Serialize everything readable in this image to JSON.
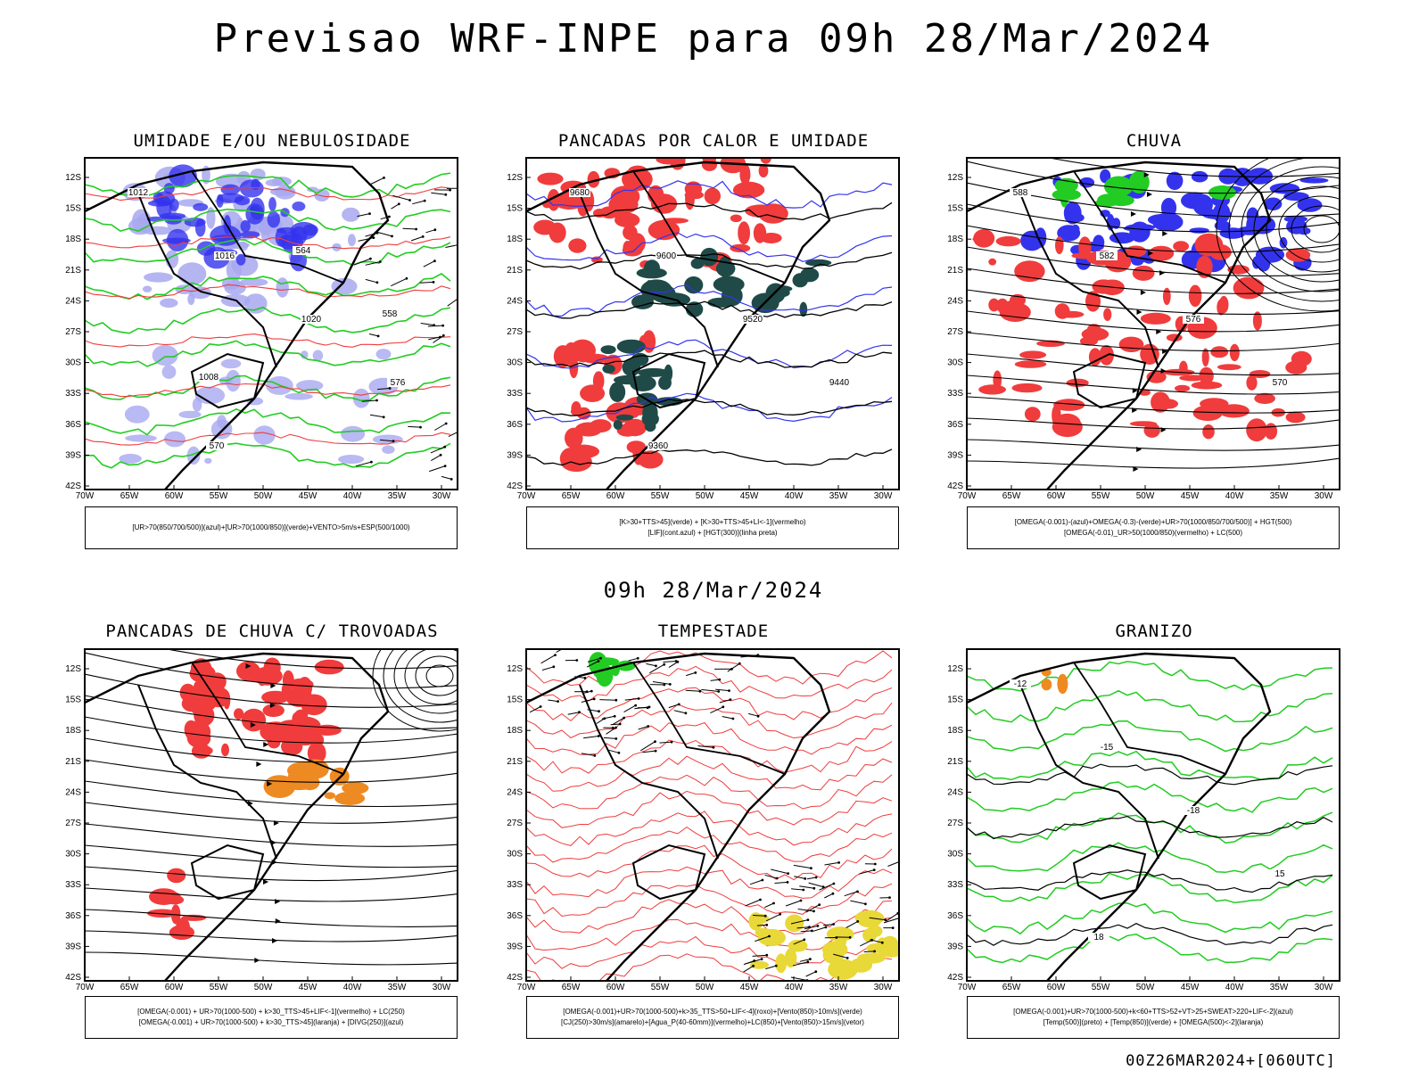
{
  "header": {
    "title": "Previsao WRF-INPE  para 09h 28/Mar/2024"
  },
  "mid_title": "09h 28/Mar/2024",
  "footer": "00Z26MAR2024+[060UTC]",
  "colors": {
    "red": "#f03c3c",
    "green": "#22cc22",
    "blue": "#3333ee",
    "lightblue": "#a8a8f0",
    "darkteal": "#1f4a48",
    "orange": "#ee8a22",
    "yellow": "#e8d838",
    "black": "#000000"
  },
  "chart_data": [
    {
      "type": "heatmap",
      "title": "UMIDADE E/OU NEBULOSIDADE",
      "legend": [
        "[UR>70(850/700/500)](azul)+[UR>70(1000/850)](verde)+VENTO>5m/s+ESP(500/1000)"
      ],
      "contour_labels": [
        "1012",
        "1016",
        "1020",
        "576",
        "570",
        "564",
        "558",
        "1008"
      ],
      "x": [
        "70W",
        "65W",
        "60W",
        "55W",
        "50W",
        "45W",
        "40W",
        "35W",
        "30W"
      ],
      "y": [
        "12S",
        "15S",
        "18S",
        "21S",
        "24S",
        "27S",
        "30S",
        "33S",
        "36S",
        "39S",
        "42S"
      ]
    },
    {
      "type": "heatmap",
      "title": "PANCADAS POR CALOR E UMIDADE",
      "legend": [
        "[K>30+TTS>45](verde) + [K>30+TTS>45+LI<-1](vermelho)",
        "[LIF](cont.azul) + [HGT(300)](linha preta)"
      ],
      "contour_labels": [
        "9680",
        "9600",
        "9520",
        "9440",
        "9360"
      ],
      "x": [
        "70W",
        "65W",
        "60W",
        "55W",
        "50W",
        "45W",
        "40W",
        "35W",
        "30W"
      ],
      "y": [
        "12S",
        "15S",
        "18S",
        "21S",
        "24S",
        "27S",
        "30S",
        "33S",
        "36S",
        "39S",
        "42S"
      ]
    },
    {
      "type": "heatmap",
      "title": "CHUVA",
      "legend": [
        "[OMEGA(-0.001)-(azul)+OMEGA(-0.3)-(verde)+UR>70(1000/850/700/500)] + HGT(500)",
        "[OMEGA(-0.01)_UR>50(1000/850)(vermelho) + LC(500)"
      ],
      "contour_labels": [
        "588",
        "582",
        "576",
        "570"
      ],
      "x": [
        "70W",
        "65W",
        "60W",
        "55W",
        "50W",
        "45W",
        "40W",
        "35W",
        "30W"
      ],
      "y": [
        "12S",
        "15S",
        "18S",
        "21S",
        "24S",
        "27S",
        "30S",
        "33S",
        "36S",
        "39S",
        "42S"
      ]
    },
    {
      "type": "heatmap",
      "title": "PANCADAS DE CHUVA C/ TROVOADAS",
      "legend": [
        "[OMEGA(-0.001) + UR>70(1000-500) + k>30_TTS>45+LIF<-1](vermelho) + LC(250)",
        "[OMEGA(-0.001) + UR>70(1000-500) + k>30_TTS>45](laranja) + [DIVG(250)](azul)"
      ],
      "x": [
        "70W",
        "65W",
        "60W",
        "55W",
        "50W",
        "45W",
        "40W",
        "35W",
        "30W"
      ],
      "y": [
        "12S",
        "15S",
        "18S",
        "21S",
        "24S",
        "27S",
        "30S",
        "33S",
        "36S",
        "39S",
        "42S"
      ]
    },
    {
      "type": "heatmap",
      "title": "TEMPESTADE",
      "legend": [
        "[OMEGA(-0.001)+UR>70(1000-500)+k>35_TTS>50+LIF<-4](roxo)+[Vento(850)>10m/s](verde)",
        "[CJ(250)>30m/s](amarelo)+[Agua_P(40-60mm)](vermelho)+LC(850)+[Vento(850)>15m/s](vetor)"
      ],
      "x": [
        "70W",
        "65W",
        "60W",
        "55W",
        "50W",
        "45W",
        "40W",
        "35W",
        "30W"
      ],
      "y": [
        "12S",
        "15S",
        "18S",
        "21S",
        "24S",
        "27S",
        "30S",
        "33S",
        "36S",
        "39S",
        "42S"
      ]
    },
    {
      "type": "heatmap",
      "title": "GRANIZO",
      "legend": [
        "[OMEGA(-0.001)+UR>70(1000-500)+k<60+TTS>52+VT>25+SWEAT>220+LIF<-2](azul)",
        "[Temp(500)](preto) + [Temp(850)](verde) + [OMEGA(500)<-2](laranja)"
      ],
      "contour_labels": [
        "-12",
        "-15",
        "-18",
        "15",
        "18"
      ],
      "x": [
        "70W",
        "65W",
        "60W",
        "55W",
        "50W",
        "45W",
        "40W",
        "35W",
        "30W"
      ],
      "y": [
        "12S",
        "15S",
        "18S",
        "21S",
        "24S",
        "27S",
        "30S",
        "33S",
        "36S",
        "39S",
        "42S"
      ]
    }
  ]
}
